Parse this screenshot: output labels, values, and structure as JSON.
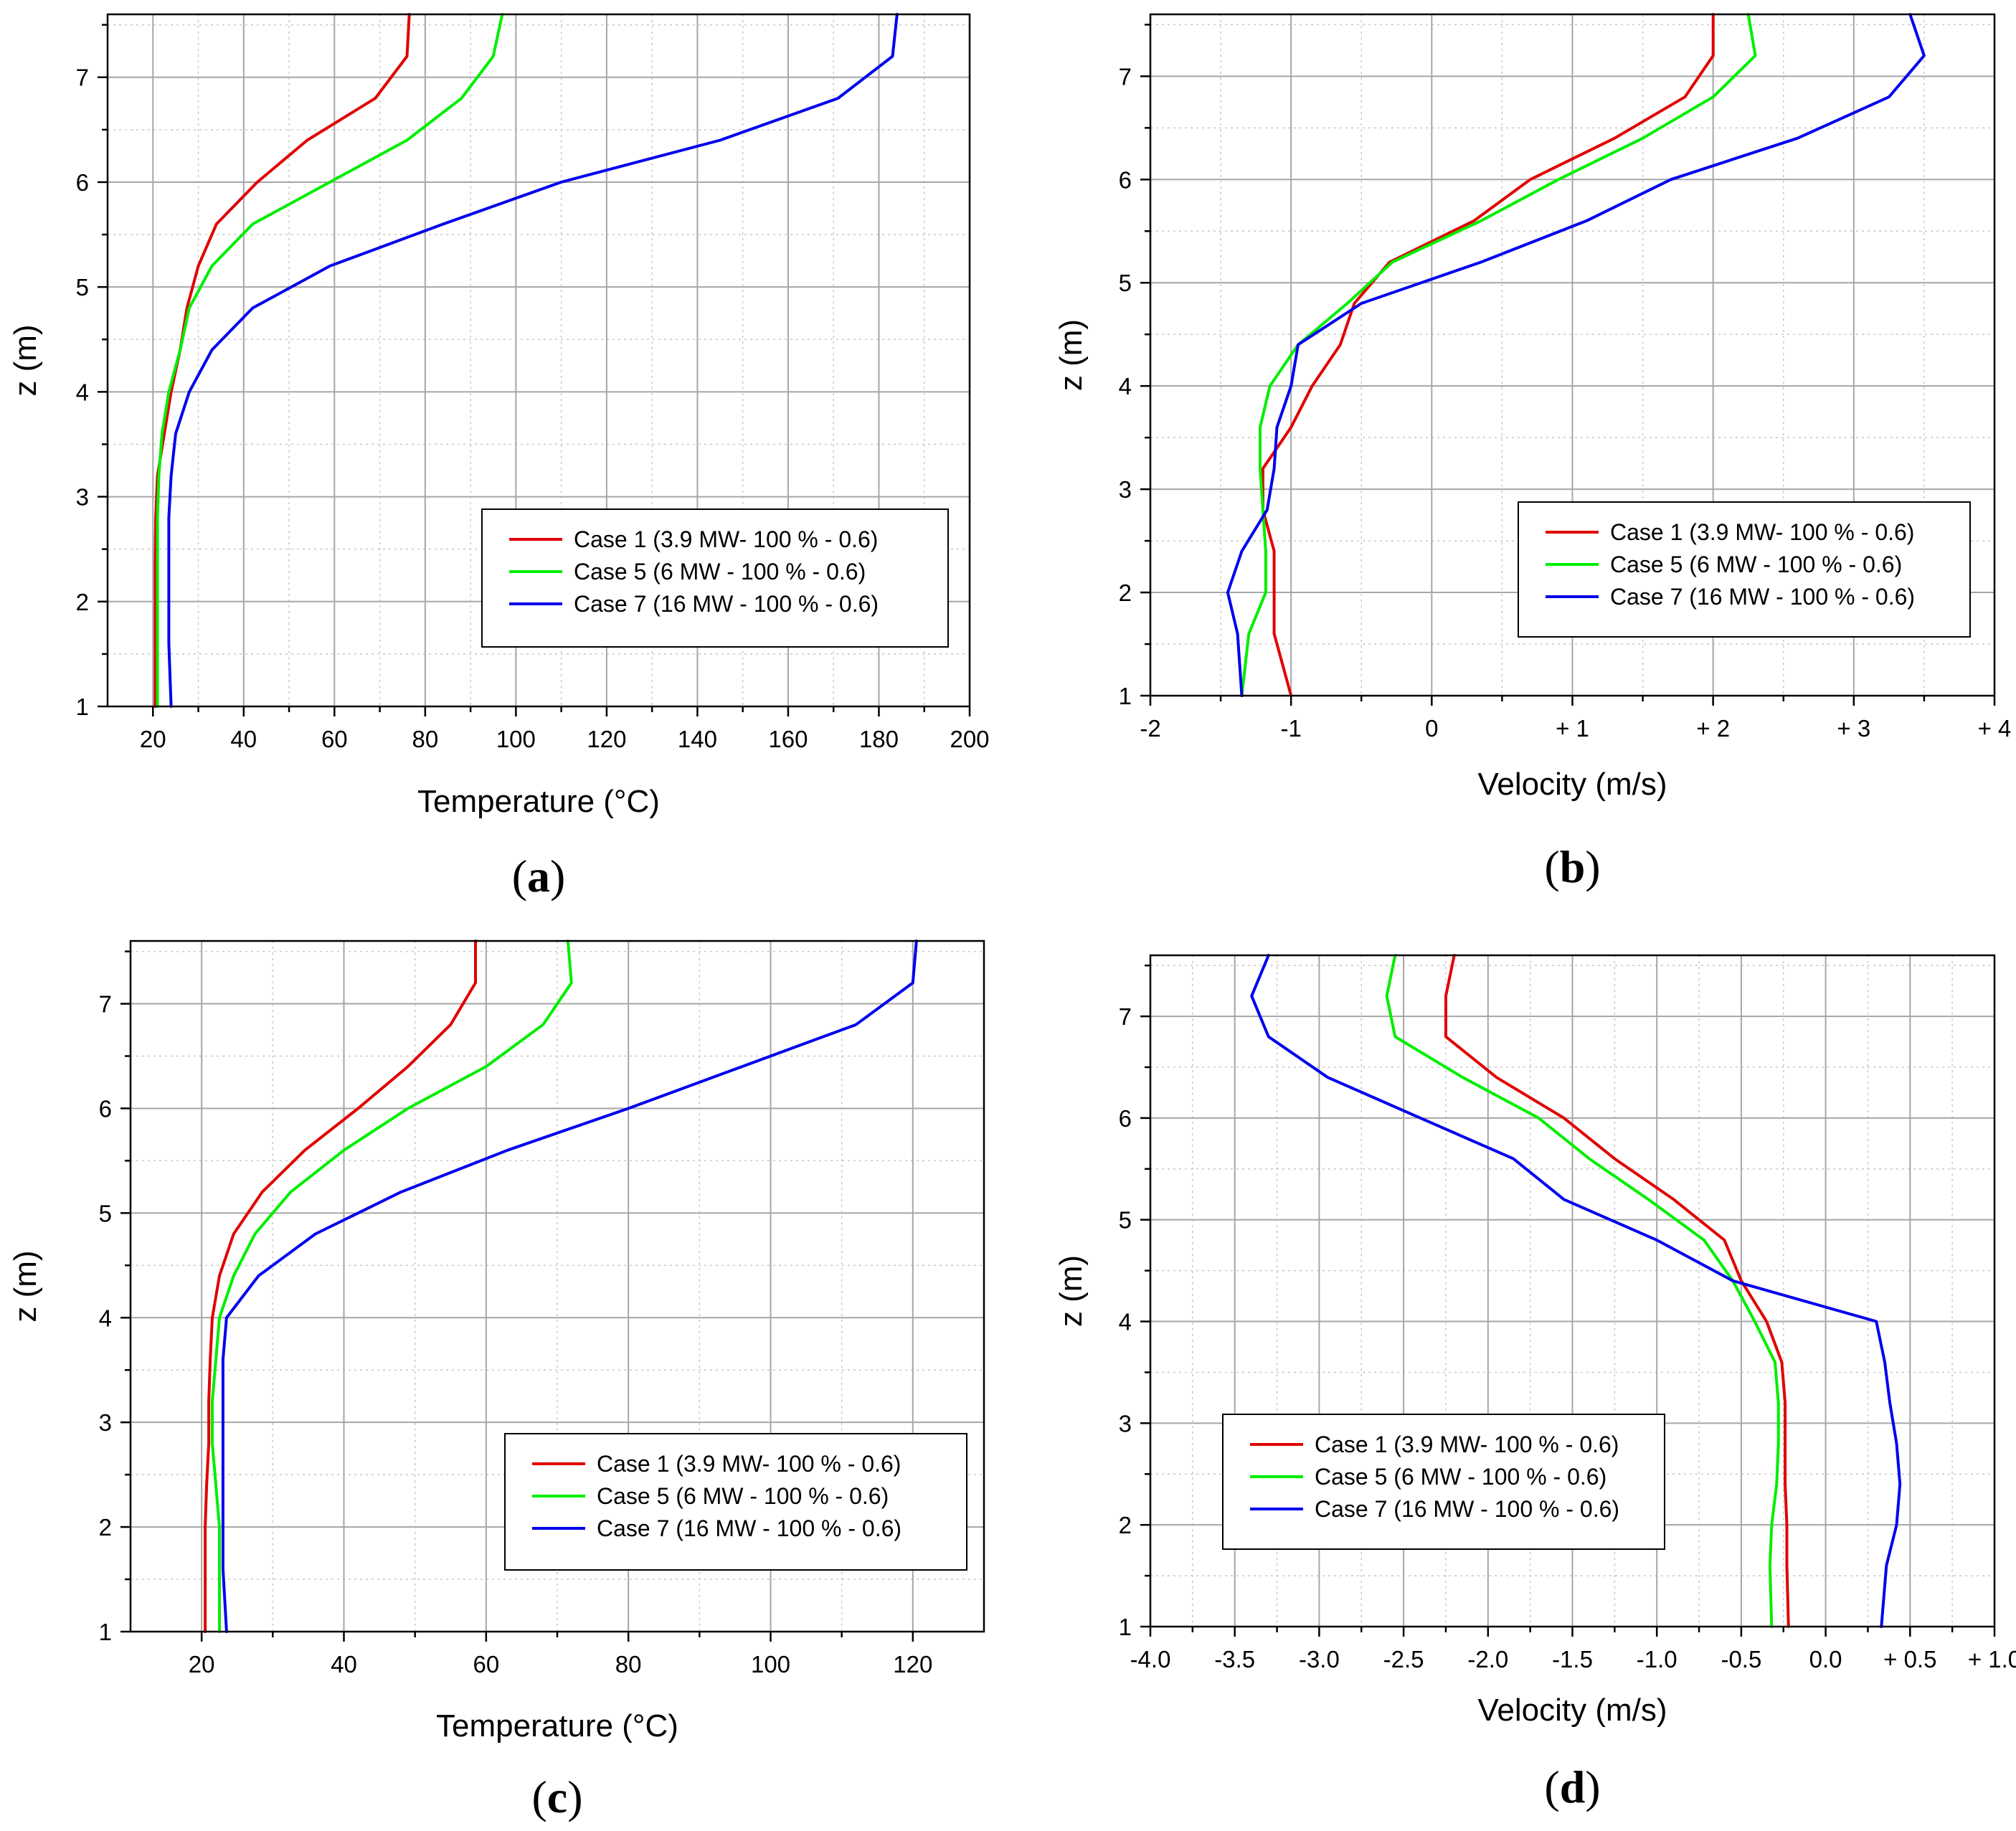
{
  "chart_data": [
    {
      "id": "a",
      "type": "line",
      "panel_label": "a",
      "xlabel": "Temperature (°C)",
      "ylabel": "z (m)",
      "xlim": [
        10,
        200
      ],
      "ylim": [
        1,
        7.6
      ],
      "xticks": [
        20,
        40,
        60,
        80,
        100,
        120,
        140,
        160,
        180,
        200
      ],
      "xtick_labels": [
        "20",
        "40",
        "60",
        "80",
        "100",
        "120",
        "140",
        "160",
        "180",
        "200"
      ],
      "yticks": [
        1,
        2,
        3,
        4,
        5,
        6,
        7
      ],
      "ytick_labels": [
        "1",
        "2",
        "3",
        "4",
        "5",
        "6",
        "7"
      ],
      "legend_position": "lower-right",
      "series": [
        {
          "name": "Case 1 (3.9 MW- 100 %  - 0.6)",
          "color": "#e00000",
          "points": [
            [
              20.5,
              1
            ],
            [
              20.5,
              1.6
            ],
            [
              20.5,
              2
            ],
            [
              20.5,
              2.4
            ],
            [
              20.6,
              2.8
            ],
            [
              21,
              3.2
            ],
            [
              22.5,
              3.6
            ],
            [
              24,
              4
            ],
            [
              26,
              4.4
            ],
            [
              27.5,
              4.8
            ],
            [
              30,
              5.2
            ],
            [
              34,
              5.6
            ],
            [
              43,
              6
            ],
            [
              54,
              6.4
            ],
            [
              69,
              6.8
            ],
            [
              76,
              7.2
            ],
            [
              76.5,
              7.6
            ]
          ]
        },
        {
          "name": "Case 5 (6 MW - 100 % - 0.6)",
          "color": "#00ee00",
          "points": [
            [
              21,
              1
            ],
            [
              21,
              1.6
            ],
            [
              21,
              2
            ],
            [
              21,
              2.4
            ],
            [
              21,
              2.8
            ],
            [
              21.3,
              3.2
            ],
            [
              22,
              3.6
            ],
            [
              23.5,
              4
            ],
            [
              26,
              4.4
            ],
            [
              28,
              4.8
            ],
            [
              33,
              5.2
            ],
            [
              42,
              5.6
            ],
            [
              59,
              6
            ],
            [
              76,
              6.4
            ],
            [
              88,
              6.8
            ],
            [
              95,
              7.2
            ],
            [
              97,
              7.6
            ]
          ]
        },
        {
          "name": "Case 7 (16 MW - 100 % - 0.6)",
          "color": "#0000ee",
          "points": [
            [
              24,
              1
            ],
            [
              23.5,
              1.6
            ],
            [
              23.5,
              2
            ],
            [
              23.5,
              2.4
            ],
            [
              23.5,
              2.8
            ],
            [
              24,
              3.2
            ],
            [
              25,
              3.6
            ],
            [
              28,
              4
            ],
            [
              33,
              4.4
            ],
            [
              42,
              4.8
            ],
            [
              59,
              5.2
            ],
            [
              84,
              5.6
            ],
            [
              110,
              6
            ],
            [
              145,
              6.4
            ],
            [
              171,
              6.8
            ],
            [
              183,
              7.2
            ],
            [
              184,
              7.6
            ]
          ]
        }
      ]
    },
    {
      "id": "b",
      "type": "line",
      "panel_label": "b",
      "xlabel": "Velocity (m/s)",
      "ylabel": "z (m)",
      "xlim": [
        -2,
        4
      ],
      "ylim": [
        1,
        7.6
      ],
      "xticks": [
        -2,
        -1,
        0,
        1,
        2,
        3,
        4
      ],
      "xtick_labels": [
        "-2",
        "-1",
        "0",
        "+ 1",
        "+ 2",
        "+ 3",
        "+ 4"
      ],
      "yticks": [
        1,
        2,
        3,
        4,
        5,
        6,
        7
      ],
      "ytick_labels": [
        "1",
        "2",
        "3",
        "4",
        "5",
        "6",
        "7"
      ],
      "legend_position": "lower-right",
      "series": [
        {
          "name": "Case 1 (3.9 MW- 100 %  - 0.6)",
          "color": "#e00000",
          "points": [
            [
              -1,
              1
            ],
            [
              -1.12,
              1.6
            ],
            [
              -1.12,
              2
            ],
            [
              -1.12,
              2.4
            ],
            [
              -1.2,
              2.8
            ],
            [
              -1.2,
              3.2
            ],
            [
              -1.0,
              3.6
            ],
            [
              -0.85,
              4
            ],
            [
              -0.65,
              4.4
            ],
            [
              -0.55,
              4.8
            ],
            [
              -0.3,
              5.2
            ],
            [
              0.3,
              5.6
            ],
            [
              0.7,
              6
            ],
            [
              1.3,
              6.4
            ],
            [
              1.8,
              6.8
            ],
            [
              2.0,
              7.2
            ],
            [
              2.0,
              7.6
            ]
          ]
        },
        {
          "name": "Case 5 (6 MW - 100 % - 0.6)",
          "color": "#00ee00",
          "points": [
            [
              -1.35,
              1
            ],
            [
              -1.3,
              1.6
            ],
            [
              -1.18,
              2
            ],
            [
              -1.18,
              2.4
            ],
            [
              -1.2,
              2.8
            ],
            [
              -1.22,
              3.2
            ],
            [
              -1.22,
              3.6
            ],
            [
              -1.15,
              4
            ],
            [
              -0.95,
              4.4
            ],
            [
              -0.6,
              4.8
            ],
            [
              -0.28,
              5.2
            ],
            [
              0.35,
              5.6
            ],
            [
              0.9,
              6
            ],
            [
              1.5,
              6.4
            ],
            [
              2.0,
              6.8
            ],
            [
              2.3,
              7.2
            ],
            [
              2.25,
              7.6
            ]
          ]
        },
        {
          "name": "Case 7 (16 MW - 100 % - 0.6)",
          "color": "#0000ee",
          "points": [
            [
              -1.35,
              1
            ],
            [
              -1.38,
              1.6
            ],
            [
              -1.45,
              2
            ],
            [
              -1.35,
              2.4
            ],
            [
              -1.17,
              2.8
            ],
            [
              -1.12,
              3.2
            ],
            [
              -1.1,
              3.6
            ],
            [
              -1.0,
              4
            ],
            [
              -0.95,
              4.4
            ],
            [
              -0.5,
              4.8
            ],
            [
              0.35,
              5.2
            ],
            [
              1.1,
              5.6
            ],
            [
              1.7,
              6
            ],
            [
              2.6,
              6.4
            ],
            [
              3.25,
              6.8
            ],
            [
              3.5,
              7.2
            ],
            [
              3.4,
              7.6
            ]
          ]
        }
      ]
    },
    {
      "id": "c",
      "type": "line",
      "panel_label": "c",
      "xlabel": "Temperature (°C)",
      "ylabel": "z (m)",
      "xlim": [
        10,
        130
      ],
      "ylim": [
        1,
        7.6
      ],
      "xticks": [
        20,
        40,
        60,
        80,
        100,
        120
      ],
      "xtick_labels": [
        "20",
        "40",
        "60",
        "80",
        "100",
        "120"
      ],
      "yticks": [
        1,
        2,
        3,
        4,
        5,
        6,
        7
      ],
      "ytick_labels": [
        "1",
        "2",
        "3",
        "4",
        "5",
        "6",
        "7"
      ],
      "legend_position": "lower-right",
      "series": [
        {
          "name": "Case 1 (3.9 MW- 100 %  - 0.6)",
          "color": "#e00000",
          "points": [
            [
              20.5,
              1
            ],
            [
              20.5,
              1.6
            ],
            [
              20.5,
              2
            ],
            [
              20.7,
              2.4
            ],
            [
              21,
              2.8
            ],
            [
              21,
              3.2
            ],
            [
              21.2,
              3.6
            ],
            [
              21.5,
              4
            ],
            [
              22.5,
              4.4
            ],
            [
              24.5,
              4.8
            ],
            [
              28.5,
              5.2
            ],
            [
              34.5,
              5.6
            ],
            [
              42,
              6
            ],
            [
              49,
              6.4
            ],
            [
              55,
              6.8
            ],
            [
              58.5,
              7.2
            ],
            [
              58.5,
              7.6
            ]
          ]
        },
        {
          "name": "Case 5 (6 MW - 100 % - 0.6)",
          "color": "#00ee00",
          "points": [
            [
              22.5,
              1
            ],
            [
              22.5,
              1.6
            ],
            [
              22.5,
              2
            ],
            [
              22,
              2.4
            ],
            [
              21.5,
              2.8
            ],
            [
              21.5,
              3.2
            ],
            [
              22,
              3.6
            ],
            [
              22.5,
              4
            ],
            [
              24.5,
              4.4
            ],
            [
              27.5,
              4.8
            ],
            [
              32.5,
              5.2
            ],
            [
              40,
              5.6
            ],
            [
              49,
              6
            ],
            [
              60,
              6.4
            ],
            [
              68,
              6.8
            ],
            [
              72,
              7.2
            ],
            [
              71.5,
              7.6
            ]
          ]
        },
        {
          "name": "Case 7 (16 MW - 100 % - 0.6)",
          "color": "#0000ee",
          "points": [
            [
              23.5,
              1
            ],
            [
              23,
              1.6
            ],
            [
              23,
              2
            ],
            [
              23,
              2.4
            ],
            [
              23,
              2.8
            ],
            [
              23,
              3.2
            ],
            [
              23,
              3.6
            ],
            [
              23.5,
              4
            ],
            [
              28,
              4.4
            ],
            [
              36,
              4.8
            ],
            [
              48,
              5.2
            ],
            [
              63,
              5.6
            ],
            [
              80,
              6
            ],
            [
              96,
              6.4
            ],
            [
              112,
              6.8
            ],
            [
              120,
              7.2
            ],
            [
              120.5,
              7.6
            ]
          ]
        }
      ]
    },
    {
      "id": "d",
      "type": "line",
      "panel_label": "d",
      "xlabel": "Velocity (m/s)",
      "ylabel": "z (m)",
      "xlim": [
        -4.0,
        1.0
      ],
      "ylim": [
        1,
        7.6
      ],
      "xticks": [
        -4.0,
        -3.5,
        -3.0,
        -2.5,
        -2.0,
        -1.5,
        -1.0,
        -0.5,
        0.0,
        0.5,
        1.0
      ],
      "xtick_labels": [
        "-4.0",
        "-3.5",
        "-3.0",
        "-2.5",
        "-2.0",
        "-1.5",
        "-1.0",
        "-0.5",
        "0.0",
        "+ 0.5",
        "+ 1.0"
      ],
      "yticks": [
        1,
        2,
        3,
        4,
        5,
        6,
        7
      ],
      "ytick_labels": [
        "1",
        "2",
        "3",
        "4",
        "5",
        "6",
        "7"
      ],
      "legend_position": "lower-left",
      "series": [
        {
          "name": "Case 1 (3.9 MW- 100 %  - 0.6)",
          "color": "#e00000",
          "points": [
            [
              -0.22,
              1
            ],
            [
              -0.23,
              1.6
            ],
            [
              -0.23,
              2
            ],
            [
              -0.24,
              2.4
            ],
            [
              -0.24,
              2.8
            ],
            [
              -0.24,
              3.2
            ],
            [
              -0.26,
              3.6
            ],
            [
              -0.35,
              4
            ],
            [
              -0.5,
              4.4
            ],
            [
              -0.6,
              4.8
            ],
            [
              -0.9,
              5.2
            ],
            [
              -1.25,
              5.6
            ],
            [
              -1.55,
              6
            ],
            [
              -1.95,
              6.4
            ],
            [
              -2.25,
              6.8
            ],
            [
              -2.25,
              7.2
            ],
            [
              -2.2,
              7.6
            ]
          ]
        },
        {
          "name": "Case 5 (6 MW - 100 % - 0.6)",
          "color": "#00ee00",
          "points": [
            [
              -0.32,
              1
            ],
            [
              -0.33,
              1.6
            ],
            [
              -0.32,
              2
            ],
            [
              -0.29,
              2.4
            ],
            [
              -0.28,
              2.8
            ],
            [
              -0.28,
              3.2
            ],
            [
              -0.3,
              3.6
            ],
            [
              -0.42,
              4
            ],
            [
              -0.55,
              4.4
            ],
            [
              -0.72,
              4.8
            ],
            [
              -1.05,
              5.2
            ],
            [
              -1.4,
              5.6
            ],
            [
              -1.7,
              6
            ],
            [
              -2.15,
              6.4
            ],
            [
              -2.55,
              6.8
            ],
            [
              -2.6,
              7.2
            ],
            [
              -2.55,
              7.6
            ]
          ]
        },
        {
          "name": "Case 7 (16 MW - 100 % - 0.6)",
          "color": "#0000ee",
          "points": [
            [
              0.33,
              1
            ],
            [
              0.36,
              1.6
            ],
            [
              0.42,
              2
            ],
            [
              0.44,
              2.4
            ],
            [
              0.42,
              2.8
            ],
            [
              0.38,
              3.2
            ],
            [
              0.35,
              3.6
            ],
            [
              0.3,
              4
            ],
            [
              -0.55,
              4.4
            ],
            [
              -1.0,
              4.8
            ],
            [
              -1.55,
              5.2
            ],
            [
              -1.85,
              5.6
            ],
            [
              -2.4,
              6
            ],
            [
              -2.95,
              6.4
            ],
            [
              -3.3,
              6.8
            ],
            [
              -3.4,
              7.2
            ],
            [
              -3.3,
              7.6
            ]
          ]
        }
      ]
    }
  ]
}
